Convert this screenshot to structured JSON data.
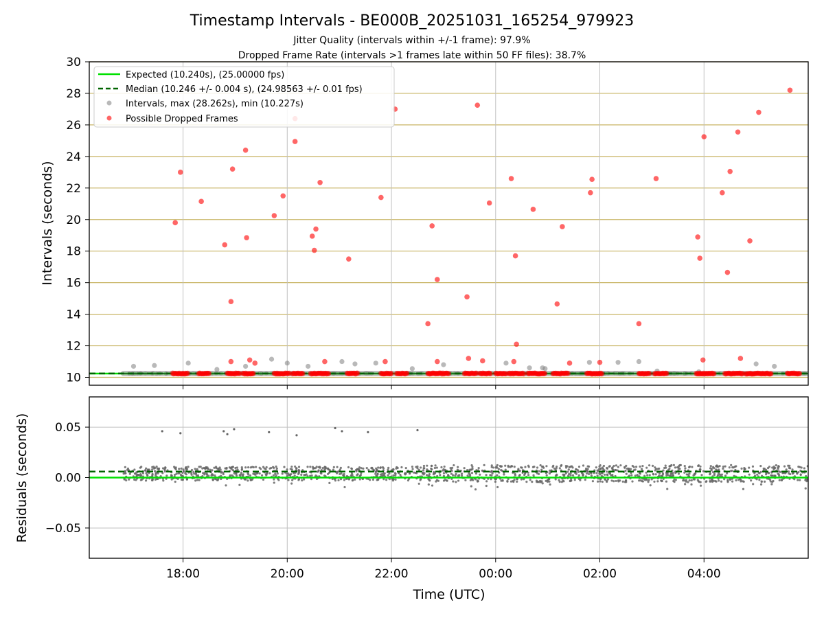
{
  "chart_data": {
    "type": "scatter",
    "title": "Timestamp Intervals - BE000B_20251031_165254_979923",
    "subtitle_lines": [
      "Jitter Quality (intervals within +/-1 frame): 97.9%",
      "Dropped Frame Rate (intervals >1 frames late within 50 FF files): 38.7%"
    ],
    "xlabel": "Time (UTC)",
    "x_unit": "hours since 00:00 UTC on first day",
    "xlim": [
      16.2,
      30.0
    ],
    "x_ticks": [
      {
        "value": 18,
        "label": "18:00"
      },
      {
        "value": 20,
        "label": "20:00"
      },
      {
        "value": 22,
        "label": "22:00"
      },
      {
        "value": 24,
        "label": "00:00"
      },
      {
        "value": 26,
        "label": "02:00"
      },
      {
        "value": 28,
        "label": "04:00"
      }
    ],
    "top": {
      "ylabel": "Intervals (seconds)",
      "ylim": [
        9.5,
        30
      ],
      "y_ticks": [
        10,
        12,
        14,
        16,
        18,
        20,
        22,
        24,
        26,
        28,
        30
      ],
      "expected": 10.24,
      "median": 10.246,
      "legend_position": "upper-left",
      "legend": [
        "Expected (10.240s), (25.00000 fps)",
        "Median (10.246 +/- 0.004 s), (24.98563 +/- 0.01 fps)",
        "Intervals, max (28.262s), min (10.227s)",
        "Possible Dropped Frames"
      ],
      "dropped_frames": [
        [
          17.85,
          19.8
        ],
        [
          17.95,
          23.0
        ],
        [
          18.35,
          21.15
        ],
        [
          18.8,
          18.4
        ],
        [
          18.92,
          14.8
        ],
        [
          18.95,
          23.2
        ],
        [
          18.92,
          11.0
        ],
        [
          19.2,
          24.4
        ],
        [
          19.22,
          18.85
        ],
        [
          19.28,
          11.1
        ],
        [
          19.38,
          10.9
        ],
        [
          19.75,
          20.25
        ],
        [
          19.92,
          21.5
        ],
        [
          20.15,
          26.4
        ],
        [
          20.15,
          24.95
        ],
        [
          20.48,
          18.95
        ],
        [
          20.52,
          18.05
        ],
        [
          20.55,
          19.4
        ],
        [
          20.63,
          22.35
        ],
        [
          20.72,
          11.0
        ],
        [
          21.18,
          17.5
        ],
        [
          21.8,
          21.4
        ],
        [
          21.88,
          11.0
        ],
        [
          22.07,
          27.0
        ],
        [
          22.7,
          13.4
        ],
        [
          22.78,
          19.6
        ],
        [
          22.88,
          16.2
        ],
        [
          22.88,
          11.0
        ],
        [
          23.45,
          15.1
        ],
        [
          23.48,
          11.2
        ],
        [
          23.65,
          27.25
        ],
        [
          23.75,
          11.05
        ],
        [
          23.88,
          21.05
        ],
        [
          24.3,
          22.6
        ],
        [
          24.38,
          17.7
        ],
        [
          24.4,
          12.1
        ],
        [
          24.35,
          11.0
        ],
        [
          24.72,
          20.65
        ],
        [
          25.18,
          14.65
        ],
        [
          25.28,
          19.55
        ],
        [
          25.42,
          10.9
        ],
        [
          25.82,
          21.7
        ],
        [
          25.85,
          22.55
        ],
        [
          26.0,
          10.95
        ],
        [
          26.75,
          13.4
        ],
        [
          27.08,
          22.6
        ],
        [
          27.88,
          18.9
        ],
        [
          27.92,
          17.55
        ],
        [
          27.98,
          11.1
        ],
        [
          28.0,
          25.25
        ],
        [
          28.35,
          21.7
        ],
        [
          28.45,
          16.65
        ],
        [
          28.5,
          23.05
        ],
        [
          28.65,
          25.55
        ],
        [
          28.7,
          11.2
        ],
        [
          28.88,
          18.65
        ],
        [
          29.05,
          26.8
        ],
        [
          29.65,
          28.2
        ]
      ],
      "dropped_baseline_segments": [
        [
          17.8,
          18.1
        ],
        [
          18.3,
          18.5
        ],
        [
          18.85,
          19.1
        ],
        [
          19.15,
          19.35
        ],
        [
          19.75,
          20.05
        ],
        [
          20.1,
          20.3
        ],
        [
          20.45,
          20.8
        ],
        [
          21.15,
          21.35
        ],
        [
          21.8,
          22.0
        ],
        [
          22.1,
          22.3
        ],
        [
          22.7,
          23.1
        ],
        [
          23.4,
          23.65
        ],
        [
          23.7,
          23.9
        ],
        [
          24.0,
          24.2
        ],
        [
          24.25,
          24.55
        ],
        [
          24.62,
          24.95
        ],
        [
          25.1,
          25.4
        ],
        [
          25.75,
          26.05
        ],
        [
          26.75,
          26.95
        ],
        [
          27.05,
          27.3
        ],
        [
          27.85,
          28.2
        ],
        [
          28.4,
          28.75
        ],
        [
          28.8,
          29.3
        ],
        [
          29.6,
          29.85
        ]
      ],
      "gray_outliers": [
        [
          17.05,
          10.7
        ],
        [
          17.45,
          10.75
        ],
        [
          18.1,
          10.9
        ],
        [
          18.65,
          10.5
        ],
        [
          19.2,
          10.7
        ],
        [
          19.7,
          11.15
        ],
        [
          20.0,
          10.9
        ],
        [
          20.4,
          10.7
        ],
        [
          21.05,
          11.0
        ],
        [
          21.3,
          10.85
        ],
        [
          21.7,
          10.9
        ],
        [
          22.4,
          10.55
        ],
        [
          23.0,
          10.8
        ],
        [
          24.2,
          10.9
        ],
        [
          24.65,
          10.6
        ],
        [
          24.95,
          10.55
        ],
        [
          24.9,
          10.6
        ],
        [
          25.8,
          10.95
        ],
        [
          26.35,
          10.95
        ],
        [
          26.75,
          11.0
        ],
        [
          27.1,
          10.4
        ],
        [
          27.9,
          10.35
        ],
        [
          29.0,
          10.85
        ],
        [
          29.35,
          10.7
        ]
      ]
    },
    "bottom": {
      "ylabel": "Residuals (seconds)",
      "ylim": [
        -0.08,
        0.08
      ],
      "y_ticks": [
        {
          "value": 0.05,
          "label": "0.05"
        },
        {
          "value": 0.0,
          "label": "0.00"
        },
        {
          "value": -0.05,
          "label": "−0.05"
        }
      ],
      "expected_residual": 0.0,
      "median_residual": 0.006,
      "high_outliers": [
        [
          17.6,
          0.046
        ],
        [
          17.95,
          0.044
        ],
        [
          18.78,
          0.046
        ],
        [
          18.85,
          0.043
        ],
        [
          18.98,
          0.048
        ],
        [
          19.65,
          0.045
        ],
        [
          20.18,
          0.042
        ],
        [
          20.92,
          0.049
        ],
        [
          21.05,
          0.046
        ],
        [
          21.55,
          0.045
        ],
        [
          22.5,
          0.047
        ]
      ]
    },
    "colors": {
      "expected": "#00e000",
      "median": "#006400",
      "intervals": "#808080",
      "dropped": "#ff0000",
      "hgrid_top": "#c8b464",
      "grid": "#c0c0c0"
    }
  }
}
